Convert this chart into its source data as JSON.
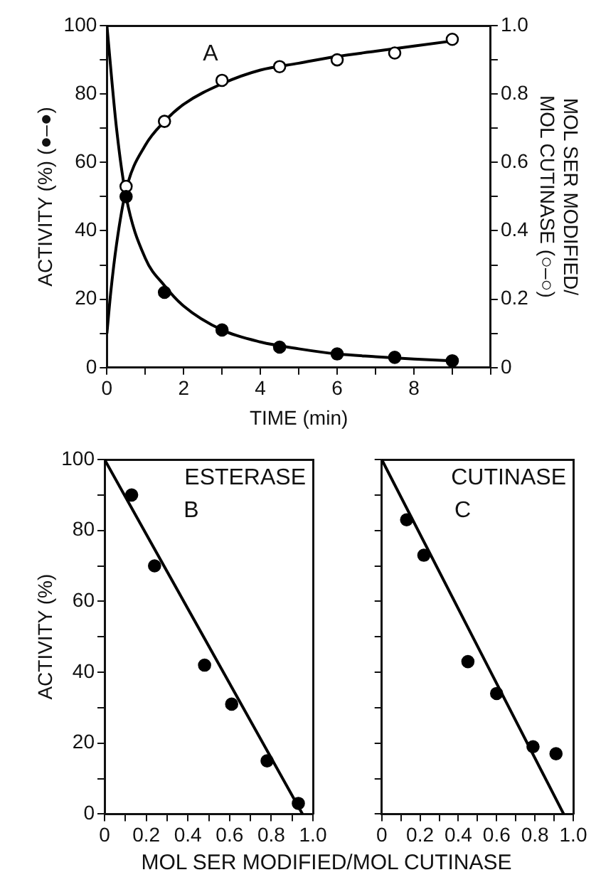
{
  "chart_data": [
    {
      "type": "scatter",
      "xlabel": "TIME (min)",
      "ylabel": "ACTIVITY (%) (●–●)",
      "y2label": "MOL SER MODIFIED/ MOL CUTINASE (○–○)",
      "annotations": [
        "A"
      ],
      "xlim": [
        0,
        10
      ],
      "xticks": [
        0,
        {
          "value": 1,
          "label": null
        },
        2,
        {
          "value": 3,
          "label": null
        },
        4,
        {
          "value": 5,
          "label": null
        },
        6,
        {
          "value": 7,
          "label": null
        },
        8,
        {
          "value": 9,
          "label": null
        },
        {
          "value": 10,
          "label": null
        }
      ],
      "ylim": [
        0,
        100
      ],
      "yticks": [
        0,
        {
          "value": 10,
          "label": null
        },
        20,
        {
          "value": 30,
          "label": null
        },
        40,
        {
          "value": 50,
          "label": null
        },
        60,
        {
          "value": 70,
          "label": null
        },
        80,
        {
          "value": 90,
          "label": null
        },
        100
      ],
      "y2lim": [
        0,
        1
      ],
      "y2ticks": [
        0,
        {
          "value": 0.1,
          "label": null
        },
        0.2,
        {
          "value": 0.3,
          "label": null
        },
        0.4,
        {
          "value": 0.5,
          "label": null
        },
        0.6,
        {
          "value": 0.7,
          "label": null
        },
        0.8,
        {
          "value": 0.9,
          "label": null
        },
        {
          "value": 1,
          "label": "1.0"
        }
      ],
      "grid": false,
      "legend": false,
      "series": [
        {
          "color": "#000000",
          "marker": "circle",
          "x": [
            0.5,
            1.5,
            3,
            4.5,
            6,
            7.5,
            9
          ],
          "values": [
            50,
            22,
            11,
            6,
            4,
            3,
            2
          ]
        },
        {
          "color": "#000000",
          "marker": "circle",
          "axis": "y2",
          "x": [
            0.5,
            1.5,
            3,
            4.5,
            6,
            7.5,
            9
          ],
          "values": [
            0.53,
            0.72,
            0.84,
            0.88,
            0.9,
            0.92,
            0.96
          ]
        },
        {
          "type": "line",
          "marker": "none",
          "color": "#000000",
          "x": [
            0,
            0.25,
            0.5,
            1,
            1.5,
            2,
            3,
            4,
            5,
            6,
            7,
            8,
            9
          ],
          "values": [
            100,
            70,
            50,
            32,
            24,
            18,
            11,
            7.5,
            5.5,
            4,
            3.2,
            2.5,
            2
          ]
        },
        {
          "type": "line",
          "marker": "none",
          "color": "#000000",
          "axis": "y2",
          "x": [
            0,
            0.1,
            0.25,
            0.5,
            1,
            1.5,
            2,
            3,
            4,
            5,
            6,
            7,
            8,
            9
          ],
          "values": [
            0.1,
            0.22,
            0.36,
            0.52,
            0.65,
            0.72,
            0.77,
            0.83,
            0.87,
            0.89,
            0.91,
            0.925,
            0.94,
            0.955
          ]
        }
      ]
    },
    {
      "type": "scatter",
      "title": "ESTERASE",
      "annotations": [
        "B"
      ],
      "xlabel": "MOL SER MODIFIED/MOL CUTINASE",
      "ylabel": "ACTIVITY (%)",
      "xlim": [
        0,
        1
      ],
      "xticks": [
        {
          "value": 0,
          "label": "0"
        },
        {
          "value": 0.1,
          "label": null
        },
        0.2,
        {
          "value": 0.3,
          "label": null
        },
        0.4,
        {
          "value": 0.5,
          "label": null
        },
        0.6,
        {
          "value": 0.7,
          "label": null
        },
        0.8,
        {
          "value": 0.9,
          "label": null
        },
        {
          "value": 1,
          "label": "1.0"
        }
      ],
      "ylim": [
        0,
        100
      ],
      "yticks": [
        0,
        {
          "value": 10,
          "label": null
        },
        20,
        {
          "value": 30,
          "label": null
        },
        40,
        {
          "value": 50,
          "label": null
        },
        60,
        {
          "value": 70,
          "label": null
        },
        80,
        {
          "value": 90,
          "label": null
        },
        100
      ],
      "grid": false,
      "legend": false,
      "series": [
        {
          "color": "#000000",
          "marker": "circle",
          "x": [
            0.13,
            0.24,
            0.48,
            0.61,
            0.78,
            0.93
          ],
          "values": [
            90,
            70,
            42,
            31,
            15,
            3
          ]
        },
        {
          "type": "line",
          "marker": "none",
          "color": "#000000",
          "x": [
            0,
            0.95
          ],
          "values": [
            100,
            0
          ]
        }
      ]
    },
    {
      "type": "scatter",
      "title": "CUTINASE",
      "annotations": [
        "C"
      ],
      "tick_labels": "x",
      "xlim": [
        0,
        1
      ],
      "xticks": [
        {
          "value": 0,
          "label": "0"
        },
        {
          "value": 0.1,
          "label": null
        },
        0.2,
        {
          "value": 0.3,
          "label": null
        },
        0.4,
        {
          "value": 0.5,
          "label": null
        },
        0.6,
        {
          "value": 0.7,
          "label": null
        },
        0.8,
        {
          "value": 0.9,
          "label": null
        },
        {
          "value": 1,
          "label": "1.0"
        }
      ],
      "ylim": [
        0,
        100
      ],
      "yticks": [
        0,
        {
          "value": 10,
          "label": null
        },
        20,
        {
          "value": 30,
          "label": null
        },
        40,
        {
          "value": 50,
          "label": null
        },
        60,
        {
          "value": 70,
          "label": null
        },
        80,
        {
          "value": 90,
          "label": null
        },
        100
      ],
      "grid": false,
      "legend": false,
      "series": [
        {
          "color": "#000000",
          "marker": "circle",
          "x": [
            0.13,
            0.22,
            0.45,
            0.6,
            0.79,
            0.91
          ],
          "values": [
            83,
            73,
            43,
            34,
            19,
            17
          ]
        },
        {
          "type": "line",
          "marker": "none",
          "color": "#000000",
          "x": [
            0,
            0.95
          ],
          "values": [
            100,
            0
          ]
        }
      ]
    }
  ]
}
